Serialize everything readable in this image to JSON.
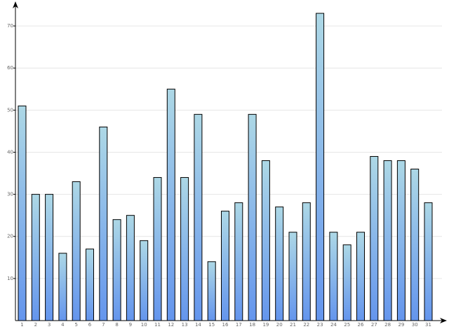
{
  "chart_data": {
    "type": "bar",
    "categories": [
      "1",
      "2",
      "3",
      "4",
      "5",
      "6",
      "7",
      "8",
      "9",
      "10",
      "11",
      "12",
      "13",
      "14",
      "15",
      "16",
      "17",
      "18",
      "19",
      "20",
      "21",
      "22",
      "23",
      "24",
      "25",
      "26",
      "27",
      "28",
      "29",
      "30",
      "31"
    ],
    "values": [
      51,
      30,
      30,
      16,
      33,
      17,
      46,
      24,
      25,
      19,
      34,
      55,
      34,
      49,
      14,
      26,
      28,
      49,
      38,
      27,
      21,
      28,
      73,
      21,
      18,
      21,
      39,
      38,
      38,
      36,
      28
    ],
    "colors": [
      "#add8e6",
      "#6495ed"
    ],
    "ylim": [
      0,
      75
    ],
    "yticks": [
      10,
      20,
      30,
      40,
      50,
      60,
      70
    ],
    "grid": true
  }
}
